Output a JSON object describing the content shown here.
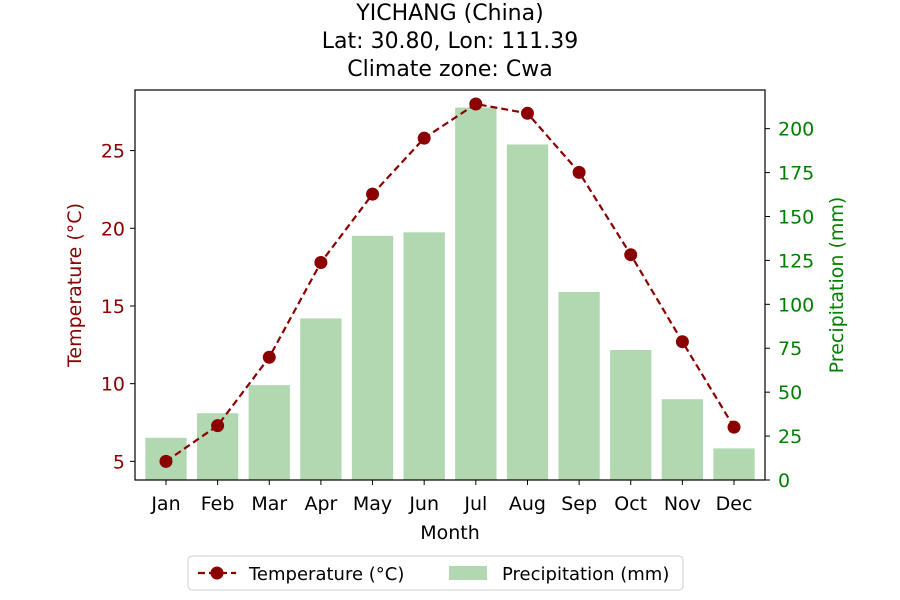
{
  "chart_data": {
    "type": "bar+line",
    "title_lines": [
      "YICHANG (China)",
      "Lat: 30.80, Lon: 111.39",
      "Climate zone: Cwa"
    ],
    "xlabel": "Month",
    "categories": [
      "Jan",
      "Feb",
      "Mar",
      "Apr",
      "May",
      "Jun",
      "Jul",
      "Aug",
      "Sep",
      "Oct",
      "Nov",
      "Dec"
    ],
    "series": [
      {
        "name": "Temperature (°C)",
        "kind": "line",
        "axis": "left",
        "color": "#8b0000",
        "values": [
          5.0,
          7.3,
          11.7,
          17.8,
          22.2,
          25.8,
          28.0,
          27.4,
          23.6,
          18.3,
          12.7,
          7.2
        ]
      },
      {
        "name": "Precipitation (mm)",
        "kind": "bar",
        "axis": "right",
        "color": "#b1d8b1",
        "values": [
          24,
          38,
          54,
          92,
          139,
          141,
          212,
          191,
          107,
          74,
          46,
          18
        ]
      }
    ],
    "y_left": {
      "label": "Temperature (°C)",
      "color": "#8b0000",
      "range": [
        3.8,
        28.9
      ],
      "ticks": [
        5,
        10,
        15,
        20,
        25
      ]
    },
    "y_right": {
      "label": "Precipitation (mm)",
      "color": "#008000",
      "range": [
        0,
        222
      ],
      "ticks": [
        0,
        25,
        50,
        75,
        100,
        125,
        150,
        175,
        200
      ]
    },
    "legend_position": "bottom-center",
    "grid": false
  }
}
